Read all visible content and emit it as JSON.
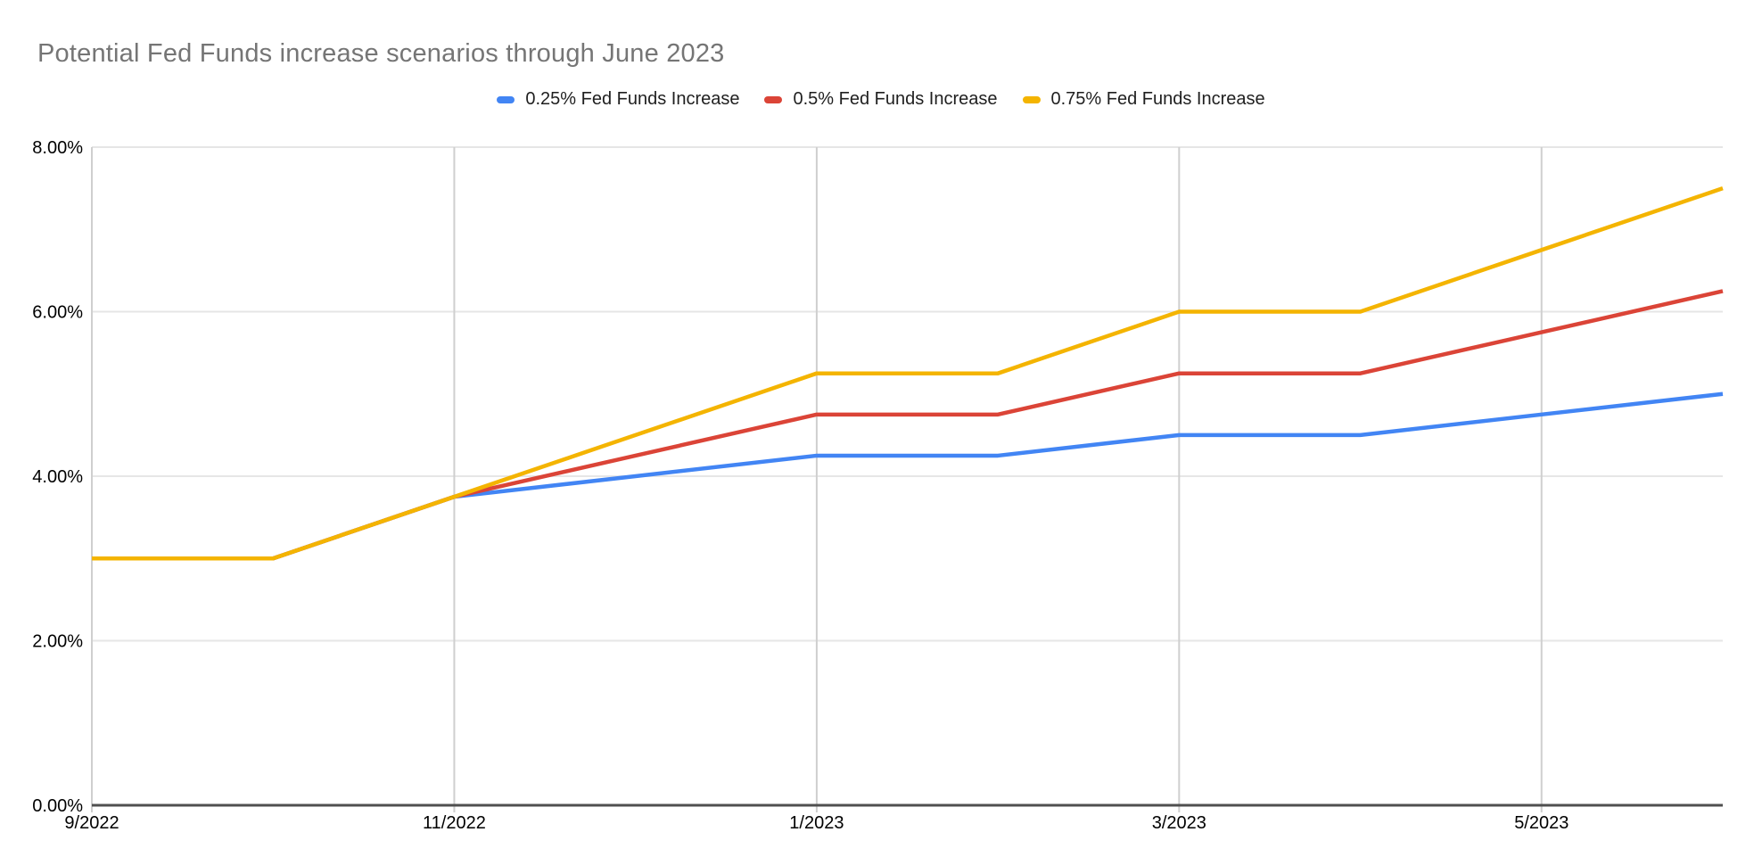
{
  "title": "Potential Fed Funds increase scenarios through June 2023",
  "colors": {
    "series_blue": "#4285F4",
    "series_red": "#DB4437",
    "series_yellow": "#F4B400",
    "grid_horizontal": "#e6e6e6",
    "grid_vertical": "#cfcfcf",
    "axis_line": "#4f4f4f",
    "title_text": "#757575",
    "tick_text": "#000000",
    "legend_text": "#1f1f1f",
    "background": "#ffffff"
  },
  "chart_data": {
    "type": "line",
    "title": "Potential Fed Funds increase scenarios through June 2023",
    "xlabel": "",
    "ylabel": "",
    "x": [
      "9/2022",
      "10/2022",
      "11/2022",
      "12/2022",
      "1/2023",
      "2/2023",
      "3/2023",
      "4/2023",
      "5/2023",
      "6/2023"
    ],
    "x_axis_tick_labels": [
      "9/2022",
      "11/2022",
      "1/2023",
      "3/2023",
      "5/2023"
    ],
    "y_axis_tick_labels": [
      "0.00%",
      "2.00%",
      "4.00%",
      "6.00%",
      "8.00%"
    ],
    "y_tick_values": [
      0,
      2,
      4,
      6,
      8
    ],
    "ylim": [
      0,
      8
    ],
    "unit": "percent",
    "grid": true,
    "legend_position": "top",
    "series": [
      {
        "name": "0.25% Fed Funds Increase",
        "color": "#4285F4",
        "values": [
          3.0,
          3.0,
          3.75,
          4.0,
          4.25,
          4.25,
          4.5,
          4.5,
          4.75,
          5.0
        ]
      },
      {
        "name": "0.5% Fed Funds Increase",
        "color": "#DB4437",
        "values": [
          3.0,
          3.0,
          3.75,
          4.25,
          4.75,
          4.75,
          5.25,
          5.25,
          5.75,
          6.25
        ]
      },
      {
        "name": "0.75% Fed Funds Increase",
        "color": "#F4B400",
        "values": [
          3.0,
          3.0,
          3.75,
          4.5,
          5.25,
          5.25,
          6.0,
          6.0,
          6.75,
          7.5
        ]
      }
    ]
  }
}
